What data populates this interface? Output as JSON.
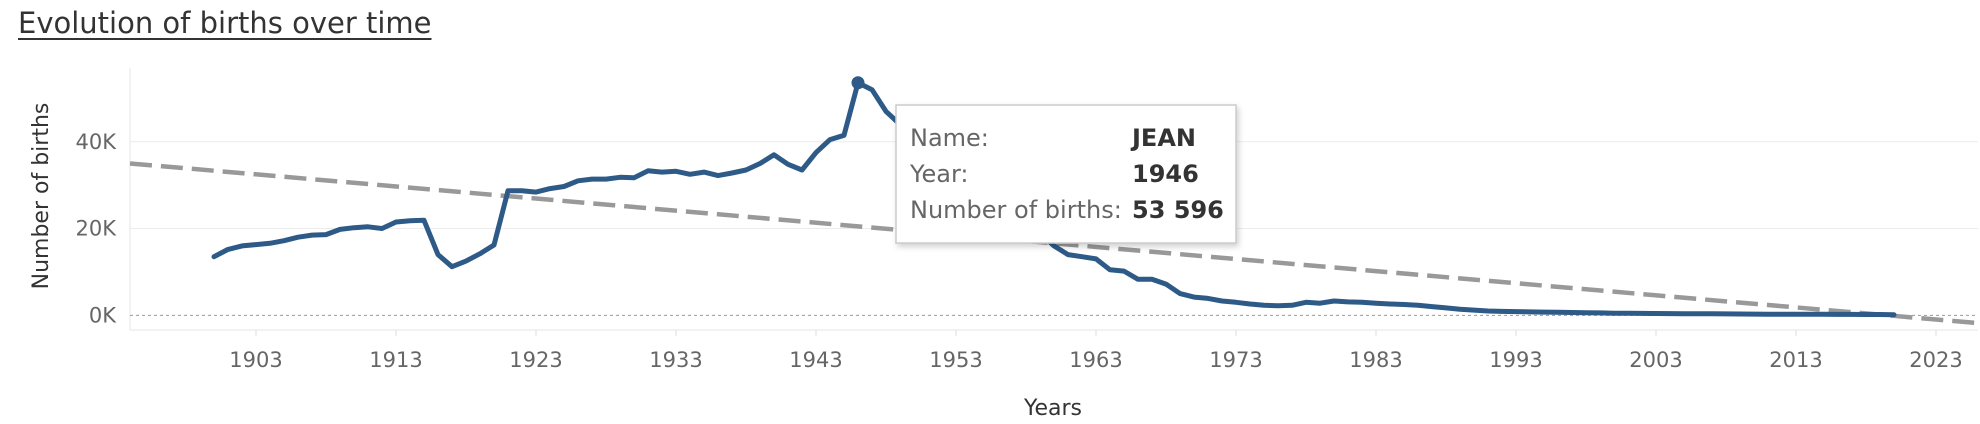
{
  "chart_data": {
    "type": "line",
    "title": "Evolution of births over time",
    "xlabel": "Years",
    "ylabel": "Number of births",
    "xlim": [
      1894,
      2026
    ],
    "ylim": [
      -2000,
      57000
    ],
    "x_ticks": [
      1903,
      1913,
      1923,
      1933,
      1943,
      1953,
      1963,
      1973,
      1983,
      1993,
      2003,
      2013,
      2023
    ],
    "y_ticks": [
      {
        "value": 0,
        "label": "0K"
      },
      {
        "value": 20000,
        "label": "20K"
      },
      {
        "value": 40000,
        "label": "40K"
      }
    ],
    "grid": "horizontal",
    "series": [
      {
        "color": "#2e5a87",
        "x": [
          1900,
          1901,
          1902,
          1903,
          1904,
          1905,
          1906,
          1907,
          1908,
          1909,
          1910,
          1911,
          1912,
          1913,
          1914,
          1915,
          1916,
          1917,
          1918,
          1919,
          1920,
          1921,
          1922,
          1923,
          1924,
          1925,
          1926,
          1927,
          1928,
          1929,
          1930,
          1931,
          1932,
          1933,
          1934,
          1935,
          1936,
          1937,
          1938,
          1939,
          1940,
          1941,
          1942,
          1943,
          1944,
          1945,
          1946,
          1947,
          1948,
          1949,
          1950,
          1951,
          1952,
          1953,
          1954,
          1955,
          1956,
          1957,
          1958,
          1959,
          1960,
          1961,
          1962,
          1963,
          1964,
          1965,
          1966,
          1967,
          1968,
          1969,
          1970,
          1971,
          1972,
          1973,
          1974,
          1975,
          1976,
          1977,
          1978,
          1979,
          1980,
          1981,
          1982,
          1983,
          1984,
          1985,
          1986,
          1987,
          1988,
          1989,
          1990,
          1991,
          1992,
          1993,
          1994,
          1995,
          1996,
          1997,
          1998,
          1999,
          2000,
          2001,
          2002,
          2003,
          2004,
          2005,
          2006,
          2007,
          2008,
          2009,
          2010,
          2011,
          2012,
          2013,
          2014,
          2015,
          2016,
          2017,
          2018,
          2019,
          2020
        ],
        "y": [
          13500,
          15200,
          16000,
          16300,
          16600,
          17200,
          18000,
          18500,
          18600,
          19800,
          20200,
          20400,
          20000,
          21500,
          21800,
          21900,
          14000,
          11200,
          12500,
          14200,
          16200,
          28700,
          28700,
          28400,
          29200,
          29700,
          31000,
          31400,
          31400,
          31800,
          31700,
          33300,
          33000,
          33200,
          32500,
          33000,
          32200,
          32800,
          33500,
          35000,
          37000,
          34800,
          33500,
          37500,
          40500,
          41500,
          53596,
          52000,
          47000,
          44000,
          40000,
          35000,
          31000,
          28000,
          26000,
          24500,
          23000,
          21500,
          20200,
          19000,
          16000,
          14000,
          13500,
          13000,
          10500,
          10200,
          8300,
          8300,
          7200,
          5000,
          4200,
          3900,
          3300,
          3000,
          2600,
          2300,
          2200,
          2300,
          3000,
          2800,
          3300,
          3100,
          3000,
          2800,
          2600,
          2500,
          2300,
          2000,
          1700,
          1400,
          1200,
          1000,
          900,
          850,
          800,
          750,
          700,
          650,
          600,
          550,
          500,
          480,
          450,
          430,
          400,
          380,
          360,
          340,
          320,
          300,
          280,
          270,
          260,
          250,
          240,
          230,
          220,
          210,
          200,
          180,
          150
        ]
      }
    ],
    "trend_line": {
      "color": "#999999",
      "style": "dashed",
      "x": [
        1894,
        2026
      ],
      "y": [
        35000,
        -1800
      ]
    },
    "tooltip": {
      "name_label": "Name:",
      "name_value": "JEAN",
      "year_label": "Year:",
      "year_value": "1946",
      "births_label": "Number of births:",
      "births_value": "53 596",
      "point": {
        "x": 1946,
        "y": 53596
      }
    }
  }
}
